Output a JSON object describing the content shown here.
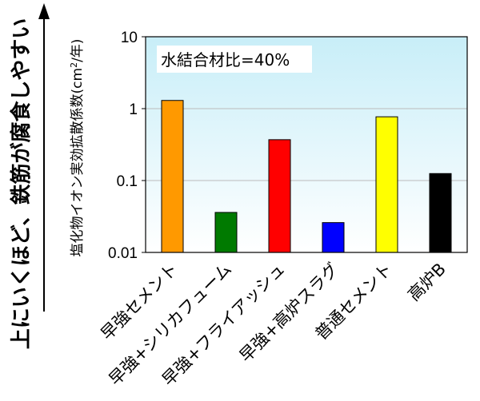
{
  "chart_data": {
    "type": "bar",
    "y_scale": "log",
    "ylim": [
      0.01,
      10
    ],
    "yticks": [
      "10",
      "1",
      "0.1",
      "0.01"
    ],
    "ytick_values": [
      10,
      1,
      0.1,
      0.01
    ],
    "categories": [
      "早強セメント",
      "早強+シリカフューム",
      "早強+フライアッシュ",
      "早強+高炉スラグ",
      "普通セメント",
      "高炉B"
    ],
    "values": [
      1.3,
      0.036,
      0.37,
      0.026,
      0.77,
      0.125
    ],
    "colors": [
      "#FF9900",
      "#007A00",
      "#FF0000",
      "#0000FF",
      "#FFFF00",
      "#000000"
    ],
    "plot_background": [
      "#FFFFFF",
      "#C8EEF8"
    ],
    "grid": true,
    "annotation": "水結合材比=40%",
    "ylabel_pre": "塩化物イオン実効拡散係数(cm",
    "ylabel_sup": "2",
    "ylabel_post": "/年)",
    "side_label": "上にいくほど、鉄筋が腐食しやすい"
  }
}
